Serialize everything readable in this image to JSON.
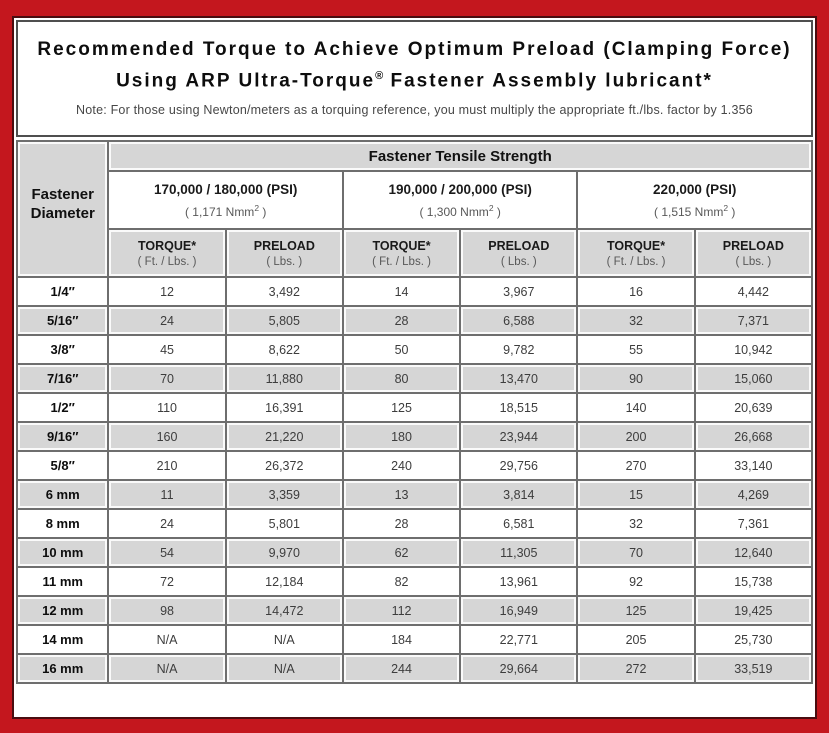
{
  "page": {
    "title_line1": "Recommended Torque to Achieve Optimum Preload (Clamping Force)",
    "title_line2_pre": "Using ARP Ultra-Torque",
    "title_line2_reg": "®",
    "title_line2_post": " Fastener Assembly lubricant*",
    "note": "Note: For those using Newton/meters as a torquing reference, you must multiply the appropriate ft./lbs. factor by 1.356"
  },
  "colors": {
    "frame_red": "#C4171E",
    "inner_line_dark": "#4A0D10",
    "cell_gray": "#D6D6D6",
    "border_gray": "#6E6E6E",
    "value_text": "#3D3D3D"
  },
  "table": {
    "tensile_header": "Fastener Tensile Strength",
    "diameter_header": "Fastener Diameter",
    "groups": [
      {
        "psi": "170,000 / 180,000 (PSI)",
        "nmm_pre": "( 1,171 Nmm",
        "nmm_sup": "2",
        "nmm_post": " )"
      },
      {
        "psi": "190,000 / 200,000 (PSI)",
        "nmm_pre": "( 1,300 Nmm",
        "nmm_sup": "2",
        "nmm_post": " )"
      },
      {
        "psi": "220,000 (PSI)",
        "nmm_pre": "( 1,515 Nmm",
        "nmm_sup": "2",
        "nmm_post": " )"
      }
    ],
    "col_headers": {
      "torque": "TORQUE*",
      "torque_unit": "( Ft. / Lbs. )",
      "preload": "PRELOAD",
      "preload_unit": "( Lbs. )"
    },
    "rows": [
      {
        "diameter": "1/4″",
        "values": [
          "12",
          "3,492",
          "14",
          "3,967",
          "16",
          "4,442"
        ]
      },
      {
        "diameter": "5/16″",
        "values": [
          "24",
          "5,805",
          "28",
          "6,588",
          "32",
          "7,371"
        ]
      },
      {
        "diameter": "3/8″",
        "values": [
          "45",
          "8,622",
          "50",
          "9,782",
          "55",
          "10,942"
        ]
      },
      {
        "diameter": "7/16″",
        "values": [
          "70",
          "11,880",
          "80",
          "13,470",
          "90",
          "15,060"
        ]
      },
      {
        "diameter": "1/2″",
        "values": [
          "110",
          "16,391",
          "125",
          "18,515",
          "140",
          "20,639"
        ]
      },
      {
        "diameter": "9/16″",
        "values": [
          "160",
          "21,220",
          "180",
          "23,944",
          "200",
          "26,668"
        ]
      },
      {
        "diameter": "5/8″",
        "values": [
          "210",
          "26,372",
          "240",
          "29,756",
          "270",
          "33,140"
        ]
      },
      {
        "diameter": "6 mm",
        "values": [
          "11",
          "3,359",
          "13",
          "3,814",
          "15",
          "4,269"
        ]
      },
      {
        "diameter": "8 mm",
        "values": [
          "24",
          "5,801",
          "28",
          "6,581",
          "32",
          "7,361"
        ]
      },
      {
        "diameter": "10 mm",
        "values": [
          "54",
          "9,970",
          "62",
          "11,305",
          "70",
          "12,640"
        ]
      },
      {
        "diameter": "11 mm",
        "values": [
          "72",
          "12,184",
          "82",
          "13,961",
          "92",
          "15,738"
        ]
      },
      {
        "diameter": "12 mm",
        "values": [
          "98",
          "14,472",
          "112",
          "16,949",
          "125",
          "19,425"
        ]
      },
      {
        "diameter": "14 mm",
        "values": [
          "N/A",
          "N/A",
          "184",
          "22,771",
          "205",
          "25,730"
        ]
      },
      {
        "diameter": "16 mm",
        "values": [
          "N/A",
          "N/A",
          "244",
          "29,664",
          "272",
          "33,519"
        ]
      }
    ]
  }
}
